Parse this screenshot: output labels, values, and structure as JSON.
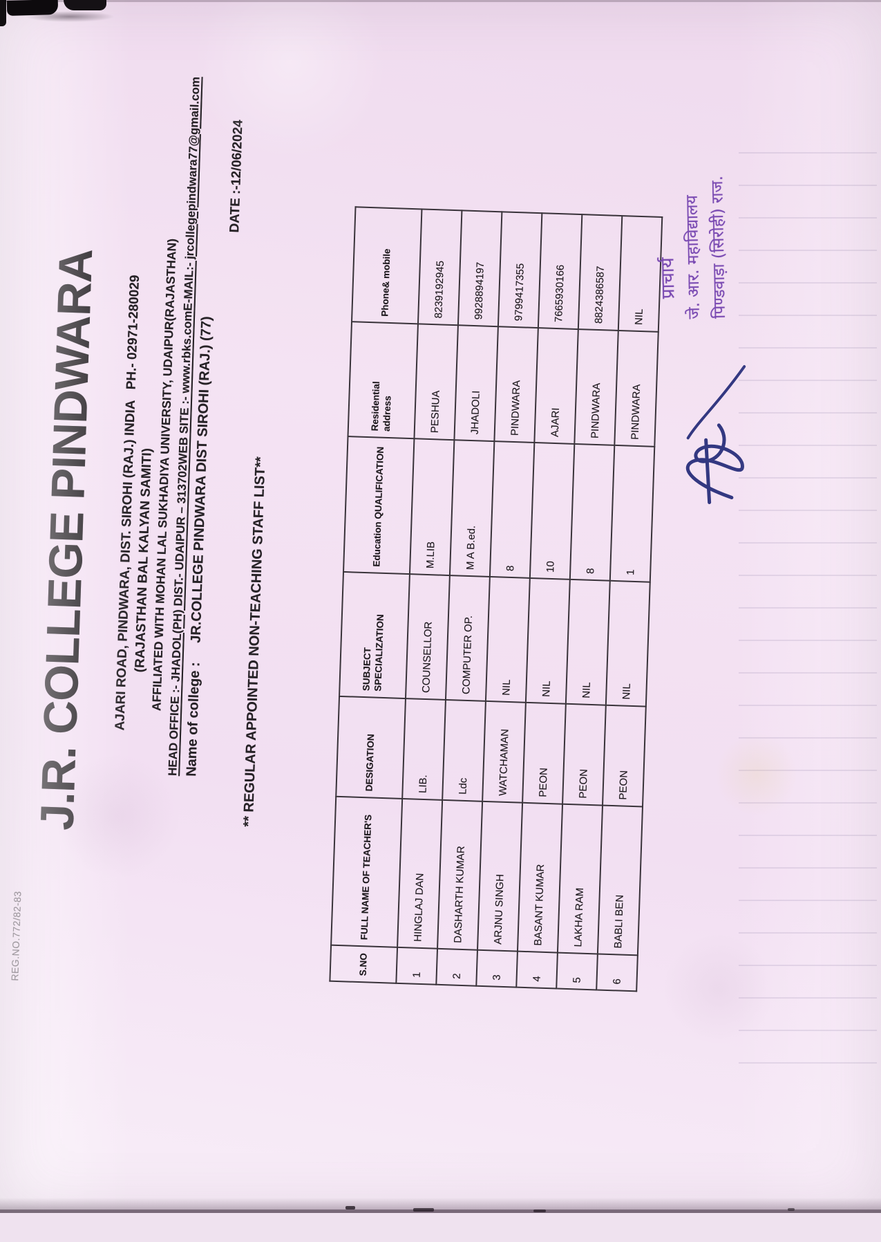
{
  "page": {
    "reg_no": "REG.NO.772/82-83",
    "date": "DATE :-12/06/2024"
  },
  "header": {
    "title": "J.R. COLLEGE PINDWARA",
    "address_line": "AJARI ROAD, PINDWARA, DIST. SIROHI (RAJ.) INDIA   PH.- 02971-280029",
    "samiti_line": "(RAJASTHAN BAL KALYAN SAMITI)",
    "affiliation_line": "AFFILIATED WITH MOHAN LAL SUKHADIYA UNIVERSITY, UDAIPUR(RAJASTHAN)",
    "head_office": "HEAD OFFICE :-  JHADOL(PH)  DIST.- UDAIPUR – 313702",
    "website": "WEB SITE :- www.rbks.com",
    "email": "E-MAIL:- jrcollegepindwara77@gmail.com",
    "college_name_label": "Name of college :",
    "college_name_value": "JR.COLLEGE PINDWARA DIST SIROHI (RAJ.)  (77)"
  },
  "list_title": "** REGULAR APPOINTED  NON-TEACHING STAFF LIST**",
  "table": {
    "columns": [
      "S.NO",
      "FULL NAME OF TEACHER'S",
      "DESIGATION",
      "SUBJECT SPECIALIZATION",
      "Education QUALIFICATION",
      "Residential\naddress",
      "Phone& mobile"
    ],
    "rows": [
      [
        "1",
        "HINGLAJ DAN",
        "LIB.",
        "COUNSELLOR",
        "M.LIB",
        "PESHUA",
        "8239192945"
      ],
      [
        "2",
        "DASHARTH KUMAR",
        "Ldc",
        "COMPUTER OP.",
        "M A B.ed.",
        "JHADOLI",
        "9928894197"
      ],
      [
        "3",
        "ARJNU SINGH",
        "WATCHAMAN",
        "NIL",
        "8",
        "PINDWARA",
        "9799417355"
      ],
      [
        "4",
        "BASANT KUMAR",
        "PEON",
        "NIL",
        "10",
        "AJARI",
        "7665930166"
      ],
      [
        "5",
        "LAKHA RAM",
        "PEON",
        "NIL",
        "8",
        "PINDWARA",
        "8824386587"
      ],
      [
        "6",
        "BABLI BEN",
        "PEON",
        "NIL",
        "1",
        "PINDWARA",
        "NIL"
      ]
    ]
  },
  "stamp": {
    "line1": "प्राचार्य",
    "line2": "जे. आर. महाविद्यालय",
    "line3": "पिण्डवाड़ा (सिरोही) राज.",
    "ink_color": "#7a4ab2",
    "signature_color": "#232a78"
  },
  "colors": {
    "paper": "#f3e2f2",
    "ink": "#262226",
    "table_border": "#39333a"
  }
}
